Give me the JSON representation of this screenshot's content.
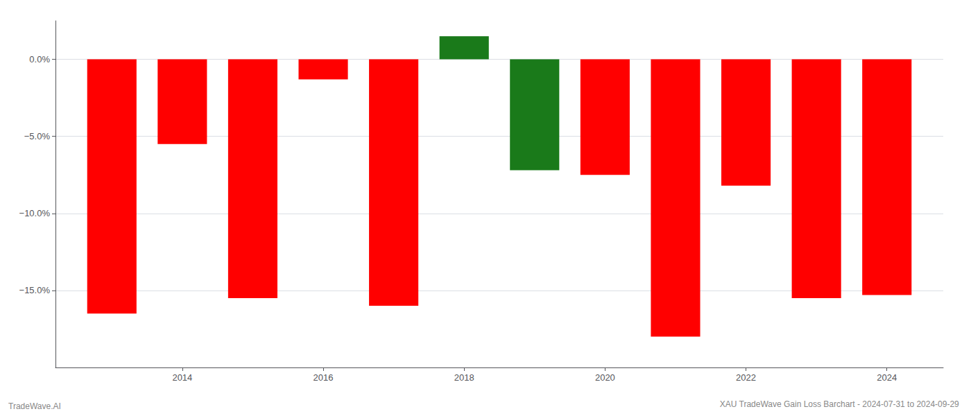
{
  "chart_data": {
    "type": "bar",
    "title": "XAU TradeWave Gain Loss Barchart - 2024-07-31 to 2024-09-29",
    "annotations": [
      "TradeWave.AI"
    ],
    "x": [
      2013,
      2014,
      2015,
      2016,
      2017,
      2018,
      2019,
      2020,
      2021,
      2022,
      2023,
      2024
    ],
    "values": [
      -16.5,
      -5.5,
      -15.5,
      -1.3,
      -16.0,
      1.5,
      -7.2,
      -7.5,
      -18.0,
      -8.2,
      -15.5,
      -15.3
    ],
    "colors": [
      "#ff0000",
      "#ff0000",
      "#ff0000",
      "#ff0000",
      "#ff0000",
      "#1a7a1a",
      "#1a7a1a",
      "#ff0000",
      "#ff0000",
      "#ff0000",
      "#ff0000",
      "#ff0000"
    ],
    "xlim": [
      2012.2,
      2024.8
    ],
    "xticks": [
      2014,
      2016,
      2018,
      2020,
      2022,
      2024
    ],
    "ylim": [
      -20,
      2.5
    ],
    "yticks": [
      {
        "value": 0.0,
        "label": "0.0%"
      },
      {
        "value": -5.0,
        "label": "−5.0%"
      },
      {
        "value": -10.0,
        "label": "−10.0%"
      },
      {
        "value": -15.0,
        "label": "−15.0%"
      }
    ],
    "grid": true
  }
}
